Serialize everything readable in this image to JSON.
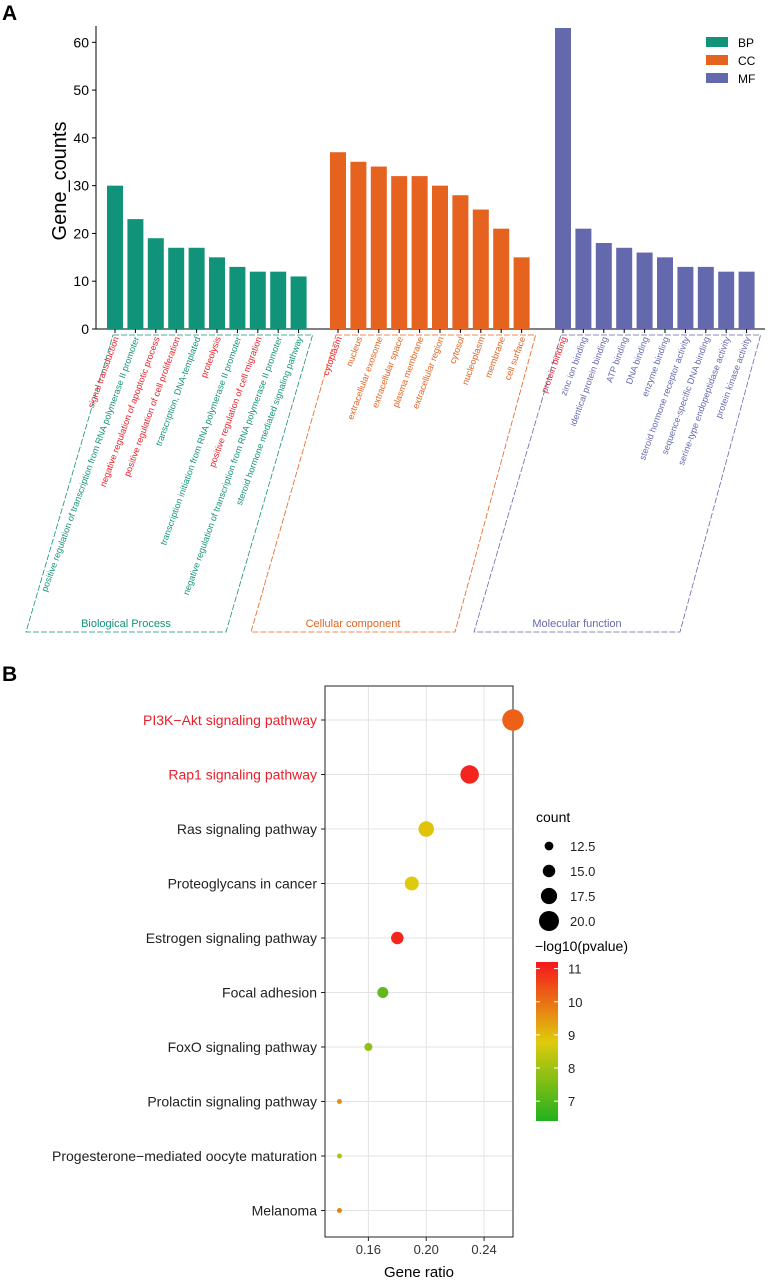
{
  "panel_a": {
    "label": "A",
    "chart_data": {
      "type": "bar",
      "ylabel": "Gene_counts",
      "ylim": [
        0,
        63
      ],
      "yticks": [
        0,
        10,
        20,
        30,
        40,
        50,
        60
      ],
      "legend": {
        "position": "top-right",
        "entries": [
          "BP",
          "CC",
          "MF"
        ]
      },
      "series": [
        {
          "name": "BP",
          "group": "Biological Process",
          "color": "#11937a",
          "categories": [
            "signal transduction",
            "positive regulation of transcription from RNA polymerase II promoter",
            "negative regulation of apoptotic process",
            "positive regulation of cell proliferation",
            "transcription, DNA-templated",
            "proteolysis",
            "transcription initiation from RNA polymerase II promoter",
            "positive regulation of cell migration",
            "negative regulation of transcription from RNA polymerase II promoter",
            "steroid hormone mediated signaling pathway"
          ],
          "values": [
            30,
            23,
            19,
            17,
            17,
            15,
            13,
            12,
            12,
            11
          ],
          "label_colors": [
            "#e8202a",
            "#11937a",
            "#e8202a",
            "#e8202a",
            "#11937a",
            "#e8202a",
            "#11937a",
            "#e8202a",
            "#11937a",
            "#11937a"
          ]
        },
        {
          "name": "CC",
          "group": "Cellular component",
          "color": "#e5621f",
          "categories": [
            "cytoplasm",
            "nucleus",
            "extracellular exosome",
            "extracellular space",
            "plasma membrane",
            "extracellular region",
            "cytosol",
            "nucleoplasm",
            "membrane",
            "cell surface"
          ],
          "values": [
            37,
            35,
            34,
            32,
            32,
            30,
            28,
            25,
            21,
            15
          ],
          "label_colors": [
            "#e8202a",
            "#e5621f",
            "#e5621f",
            "#e5621f",
            "#e5621f",
            "#e5621f",
            "#e5621f",
            "#e5621f",
            "#e5621f",
            "#e5621f"
          ]
        },
        {
          "name": "MF",
          "group": "Molecular function",
          "color": "#6469ad",
          "categories": [
            "protein binding",
            "zinc ion binding",
            "identical protein binding",
            "ATP binding",
            "DNA binding",
            "enzyme binding",
            "steroid hormone receptor activity",
            "sequence-specific DNA binding",
            "serine-type endopeptidase activity",
            "protein kinase activity"
          ],
          "values": [
            63,
            21,
            18,
            17,
            16,
            15,
            13,
            13,
            12,
            12
          ],
          "label_colors": [
            "#e8202a",
            "#6469ad",
            "#6469ad",
            "#6469ad",
            "#6469ad",
            "#6469ad",
            "#6469ad",
            "#6469ad",
            "#6469ad",
            "#6469ad"
          ]
        }
      ]
    }
  },
  "panel_b": {
    "label": "B",
    "chart_data": {
      "type": "scatter",
      "xlabel": "Gene ratio",
      "xlim": [
        0.13,
        0.26
      ],
      "xticks": [
        0.16,
        0.2,
        0.24
      ],
      "xtick_labels": [
        "0.16",
        "0.20",
        "0.24"
      ],
      "pathways": [
        "PI3K−Akt signaling pathway",
        "Rap1 signaling pathway",
        "Ras signaling pathway",
        "Proteoglycans in cancer",
        "Estrogen signaling pathway",
        "Focal adhesion",
        "FoxO signaling pathway",
        "Prolactin signaling pathway",
        "Progesterone−mediated oocyte maturation",
        "Melanoma"
      ],
      "pathway_colors": [
        "#e8202a",
        "#e8202a",
        "#222222",
        "#222222",
        "#222222",
        "#222222",
        "#222222",
        "#222222",
        "#222222",
        "#222222"
      ],
      "gene_ratio": [
        0.26,
        0.23,
        0.2,
        0.19,
        0.18,
        0.17,
        0.16,
        0.14,
        0.14,
        0.14
      ],
      "count": [
        21,
        19,
        17,
        16,
        15,
        14,
        12,
        10,
        10,
        10
      ],
      "neg_log10_pvalue": [
        10.2,
        11.0,
        8.9,
        8.8,
        11.0,
        7.2,
        7.8,
        9.6,
        8.2,
        9.8
      ],
      "size_legend": {
        "title": "count",
        "values": [
          12.5,
          15.0,
          17.5,
          20.0
        ],
        "labels": [
          "12.5",
          "15.0",
          "17.5",
          "20.0"
        ]
      },
      "color_legend": {
        "title": "−log10(pvalue)",
        "range": [
          6.4,
          11.2
        ],
        "ticks": [
          7,
          8,
          9,
          10,
          11
        ],
        "tick_labels": [
          "7",
          "8",
          "9",
          "10",
          "11"
        ],
        "colors": [
          "#22b11f",
          "#dfcb0c",
          "#f5161e"
        ]
      }
    }
  }
}
